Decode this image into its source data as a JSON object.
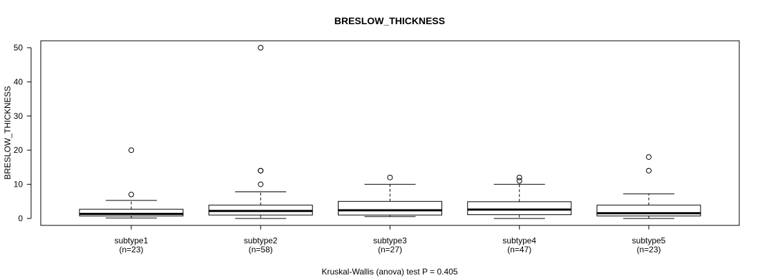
{
  "chart_data": {
    "type": "boxplot",
    "title": "BRESLOW_THICKNESS",
    "ylabel": "BRESLOW_THICKNESS",
    "xlabel": "Kruskal-Wallis (anova) test P = 0.405",
    "ylim": [
      0,
      50
    ],
    "yticks": [
      0,
      10,
      20,
      30,
      40,
      50
    ],
    "grid": false,
    "groups": [
      {
        "name": "subtype1",
        "n_label": "(n=23)",
        "whisker_low": 0.15,
        "q1": 0.75,
        "median": 1.35,
        "q3": 2.7,
        "whisker_high": 5.3,
        "outliers": [
          7,
          20
        ]
      },
      {
        "name": "subtype2",
        "n_label": "(n=58)",
        "whisker_low": 0,
        "q1": 1.0,
        "median": 2.2,
        "q3": 3.9,
        "whisker_high": 7.8,
        "outliers": [
          10,
          14,
          14,
          50
        ]
      },
      {
        "name": "subtype3",
        "n_label": "(n=27)",
        "whisker_low": 0.55,
        "q1": 1.0,
        "median": 2.4,
        "q3": 5.0,
        "whisker_high": 10,
        "outliers": [
          12
        ]
      },
      {
        "name": "subtype4",
        "n_label": "(n=47)",
        "whisker_low": 0,
        "q1": 1.1,
        "median": 2.6,
        "q3": 4.9,
        "whisker_high": 10,
        "outliers": [
          11,
          12
        ]
      },
      {
        "name": "subtype5",
        "n_label": "(n=23)",
        "whisker_low": 0,
        "q1": 0.75,
        "median": 1.55,
        "q3": 3.9,
        "whisker_high": 7.2,
        "outliers": [
          14,
          18
        ]
      }
    ]
  }
}
